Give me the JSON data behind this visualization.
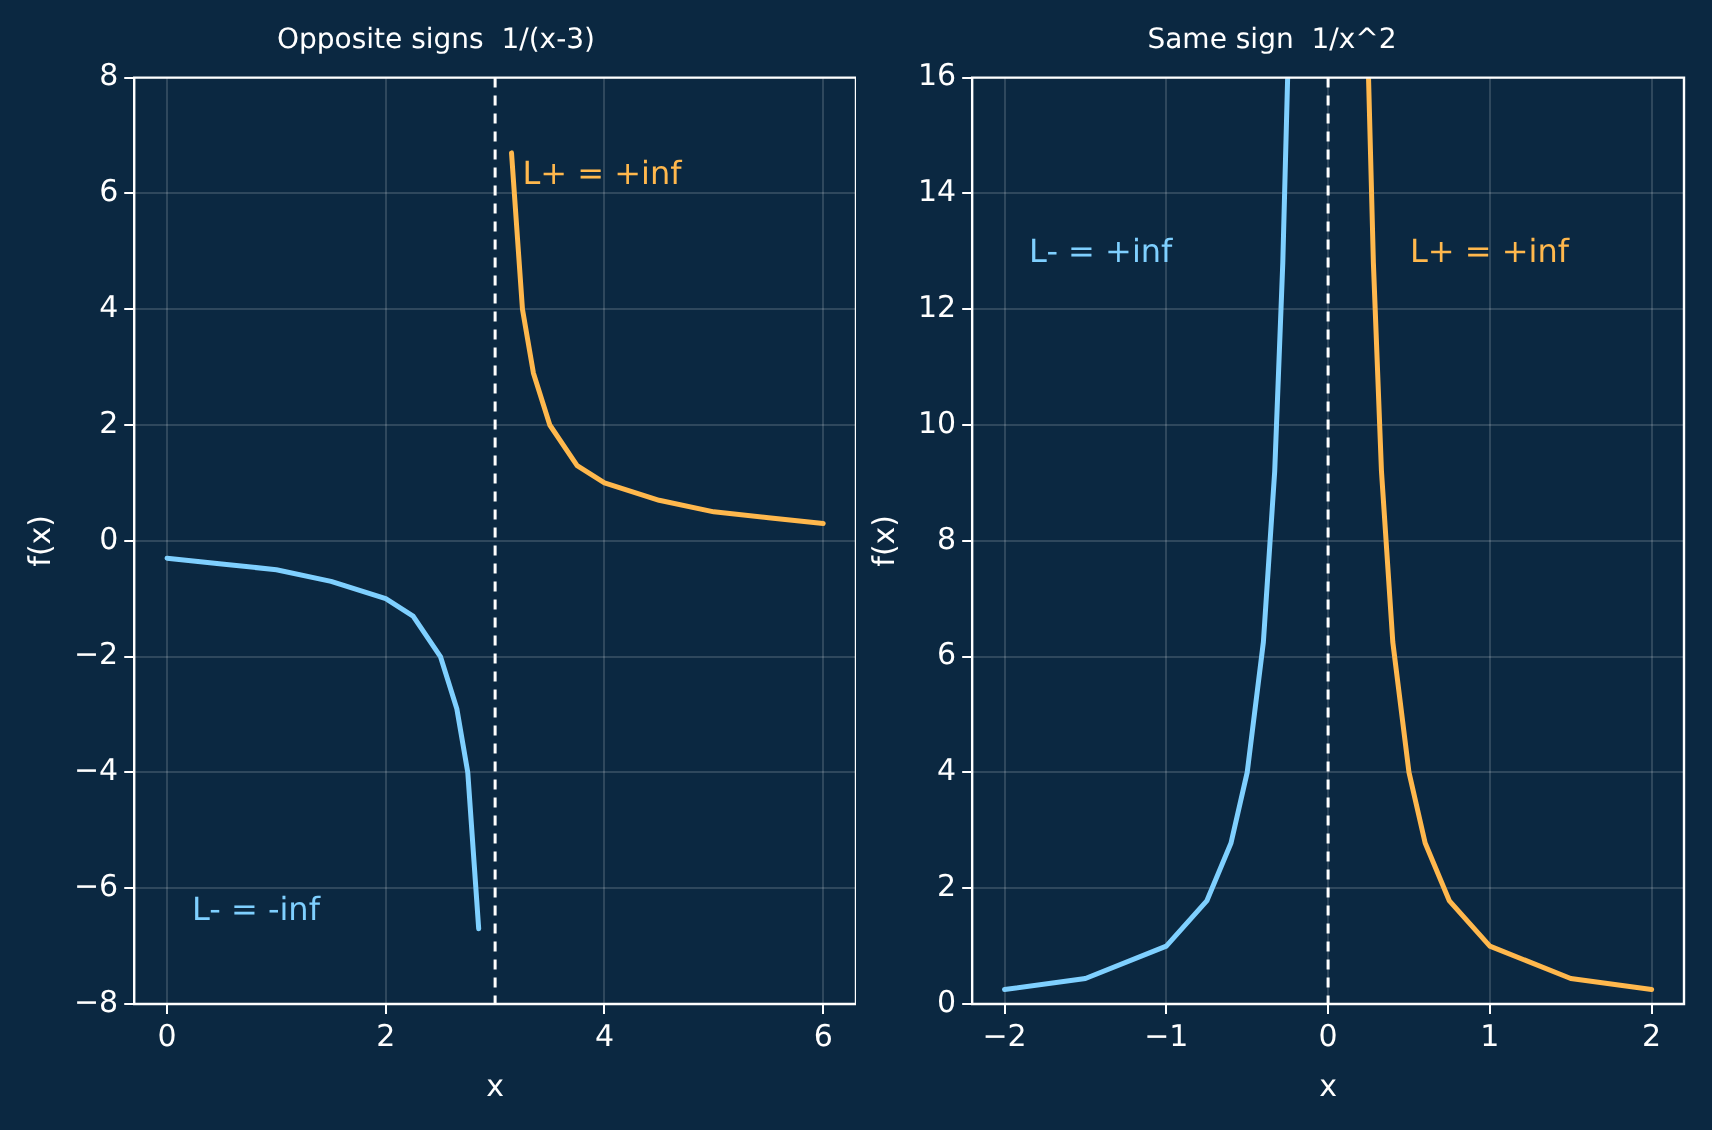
{
  "chart_data": [
    {
      "type": "line",
      "title": "Opposite signs  1/(x-3)",
      "xlabel": "x",
      "ylabel": "f(x)",
      "xlim": [
        -0.3,
        6.3
      ],
      "ylim": [
        -8,
        8
      ],
      "xticks": [
        0,
        2,
        4,
        6
      ],
      "yticks": [
        {
          "value": -8,
          "label": "−8"
        },
        {
          "value": -6,
          "label": "−6"
        },
        {
          "value": -4,
          "label": "−4"
        },
        {
          "value": -2,
          "label": "−2"
        },
        0,
        2,
        4,
        6,
        8
      ],
      "grid": true,
      "legend": false,
      "marker": "none",
      "line_style": "solid",
      "series": [
        {
          "color": "#7fd0ff",
          "x": [
            0,
            0.5,
            1,
            1.5,
            2,
            2.25,
            2.5,
            2.65,
            2.75,
            2.85
          ],
          "values": [
            -0.3,
            -0.4,
            -0.5,
            -0.7,
            -1,
            -1.3,
            -2,
            -2.9,
            -4,
            -6.7
          ]
        },
        {
          "color": "#ffb84d",
          "x": [
            3.15,
            3.25,
            3.35,
            3.5,
            3.75,
            4,
            4.5,
            5,
            5.5,
            6
          ],
          "values": [
            6.7,
            4,
            2.9,
            2,
            1.3,
            1,
            0.7,
            0.5,
            0.4,
            0.3
          ]
        }
      ],
      "ref_lines": [
        {
          "axis": "x",
          "value": 3,
          "color": "#ffffff",
          "line_style": "dashed"
        }
      ],
      "annotations": [
        "L- = -inf",
        {
          "text": "L+ = +inf",
          "x": 3.25,
          "y": 6.3
        }
      ]
    },
    {
      "type": "line",
      "title": "Same sign  1/x^2",
      "xlabel": "x",
      "ylabel": "f(x)",
      "xlim": [
        -2.2,
        2.2
      ],
      "ylim": [
        0,
        16
      ],
      "xticks": [
        {
          "value": -2,
          "label": "−2"
        },
        {
          "value": -1,
          "label": "−1"
        },
        0,
        1,
        2
      ],
      "yticks": [
        0,
        2,
        4,
        6,
        8,
        10,
        12,
        14,
        16
      ],
      "grid": true,
      "legend": false,
      "marker": "none",
      "line_style": "solid",
      "series": [
        {
          "color": "#7fd0ff",
          "x": [
            -2,
            -1.5,
            -1,
            -0.75,
            -0.6,
            -0.5,
            -0.4,
            -0.33,
            -0.28,
            -0.25
          ],
          "values": [
            0.25,
            0.44,
            1,
            1.78,
            2.78,
            4,
            6.25,
            9.2,
            12.8,
            16
          ]
        },
        {
          "color": "#ffb84d",
          "x": [
            0.25,
            0.28,
            0.33,
            0.4,
            0.5,
            0.6,
            0.75,
            1,
            1.5,
            2
          ],
          "values": [
            16,
            12.8,
            9.2,
            6.25,
            4,
            2.78,
            1.78,
            1,
            0.44,
            0.25
          ]
        }
      ],
      "ref_lines": [
        {
          "axis": "x",
          "value": 0,
          "color": "#ffffff",
          "line_style": "dashed"
        }
      ],
      "annotations": [
        "L- = +inf",
        "L+ = +inf"
      ]
    }
  ]
}
